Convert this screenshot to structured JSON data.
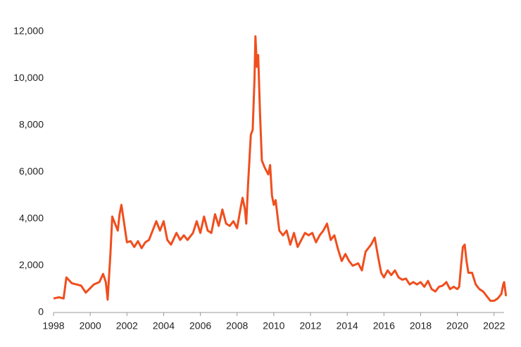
{
  "chart_data": {
    "type": "line",
    "x": [
      1998.0,
      1998.3,
      1998.55,
      1998.7,
      1999.0,
      1999.5,
      1999.76,
      2000.2,
      2000.5,
      2000.7,
      2000.85,
      2000.95,
      2001.1,
      2001.2,
      2001.35,
      2001.5,
      2001.6,
      2001.7,
      2001.85,
      2002.0,
      2002.2,
      2002.4,
      2002.6,
      2002.8,
      2003.0,
      2003.2,
      2003.4,
      2003.6,
      2003.8,
      2004.0,
      2004.2,
      2004.4,
      2004.7,
      2004.9,
      2005.1,
      2005.3,
      2005.6,
      2005.8,
      2006.0,
      2006.2,
      2006.4,
      2006.6,
      2006.8,
      2007.0,
      2007.2,
      2007.4,
      2007.6,
      2007.8,
      2008.0,
      2008.2,
      2008.3,
      2008.43,
      2008.5,
      2008.6,
      2008.75,
      2008.85,
      2008.95,
      2009.0,
      2009.08,
      2009.15,
      2009.25,
      2009.35,
      2009.5,
      2009.7,
      2009.8,
      2009.9,
      2010.0,
      2010.1,
      2010.3,
      2010.5,
      2010.7,
      2010.9,
      2011.1,
      2011.3,
      2011.5,
      2011.7,
      2011.9,
      2012.1,
      2012.3,
      2012.5,
      2012.7,
      2012.9,
      2013.1,
      2013.3,
      2013.5,
      2013.7,
      2013.9,
      2014.1,
      2014.3,
      2014.6,
      2014.8,
      2015.0,
      2015.3,
      2015.5,
      2015.7,
      2015.85,
      2016.0,
      2016.2,
      2016.4,
      2016.6,
      2016.8,
      2017.0,
      2017.2,
      2017.4,
      2017.6,
      2017.8,
      2018.0,
      2018.2,
      2018.4,
      2018.6,
      2018.8,
      2019.0,
      2019.2,
      2019.4,
      2019.6,
      2019.8,
      2020.0,
      2020.1,
      2020.2,
      2020.3,
      2020.4,
      2020.5,
      2020.6,
      2020.8,
      2021.0,
      2021.2,
      2021.4,
      2021.6,
      2021.8,
      2022.0,
      2022.2,
      2022.4,
      2022.5,
      2022.55,
      2022.65
    ],
    "series": [
      {
        "color": "#f04e1e",
        "values": [
          600,
          650,
          600,
          1500,
          1250,
          1150,
          850,
          1200,
          1300,
          1650,
          1300,
          550,
          2500,
          4100,
          3800,
          3500,
          4200,
          4600,
          3800,
          3000,
          3050,
          2800,
          3050,
          2750,
          3000,
          3100,
          3500,
          3900,
          3500,
          3900,
          3100,
          2900,
          3400,
          3100,
          3300,
          3100,
          3400,
          3900,
          3400,
          4100,
          3500,
          3400,
          4200,
          3700,
          4400,
          3800,
          3700,
          3900,
          3600,
          4500,
          4900,
          4400,
          3800,
          5500,
          7600,
          7800,
          10000,
          11800,
          10500,
          11000,
          8500,
          6500,
          6200,
          5900,
          6300,
          5000,
          4600,
          4800,
          3500,
          3300,
          3500,
          2900,
          3400,
          2800,
          3100,
          3400,
          3300,
          3400,
          3000,
          3300,
          3500,
          3800,
          3100,
          3300,
          2700,
          2200,
          2500,
          2200,
          2000,
          2100,
          1800,
          2600,
          2900,
          3200,
          2300,
          1700,
          1500,
          1800,
          1600,
          1800,
          1500,
          1400,
          1450,
          1200,
          1300,
          1200,
          1300,
          1100,
          1350,
          1000,
          900,
          1100,
          1150,
          1300,
          1000,
          1100,
          1000,
          1100,
          2000,
          2800,
          2900,
          2200,
          1700,
          1700,
          1200,
          1000,
          900,
          700,
          500,
          500,
          600,
          800,
          1200,
          1300,
          700
        ]
      }
    ],
    "xlim": [
      1998,
      2022.7
    ],
    "xticks": [
      1998,
      2000,
      2002,
      2004,
      2006,
      2008,
      2010,
      2012,
      2014,
      2016,
      2018,
      2020,
      2022
    ],
    "ylim": [
      0,
      12000
    ],
    "yticks": [
      0,
      {
        "value": 2000,
        "label": "2,000"
      },
      {
        "value": 4000,
        "label": "4,000"
      },
      {
        "value": 6000,
        "label": "6,000"
      },
      {
        "value": 8000,
        "label": "8,000"
      },
      {
        "value": 10000,
        "label": "10,000"
      },
      {
        "value": 12000,
        "label": "12,000"
      }
    ]
  }
}
